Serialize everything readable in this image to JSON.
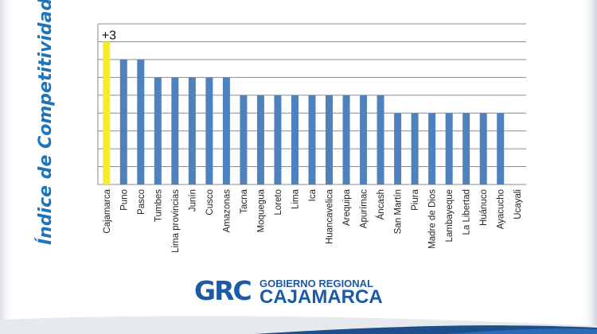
{
  "chart_data": {
    "type": "bar",
    "title": "",
    "xlabel": "",
    "ylabel": "Índice de Competitividad",
    "categories": [
      "Cajamarca",
      "Puno",
      "Pasco",
      "Tumbes",
      "Lima provincias",
      "Junín",
      "Cusco",
      "Amazonas",
      "Tacna",
      "Moquegua",
      "Loreto",
      "Lima",
      "Ica",
      "Huancavelica",
      "Arequipa",
      "Apurímac",
      "Áncash",
      "San Martín",
      "Piura",
      "Madre de Dios",
      "Lambayeque",
      "La Libertad",
      "Huánuco",
      "Ayacucho",
      "Ucayali"
    ],
    "values": [
      8,
      7,
      7,
      6,
      6,
      6,
      6,
      6,
      5,
      5,
      5,
      5,
      5,
      5,
      5,
      5,
      5,
      4,
      4,
      4,
      4,
      4,
      4,
      4,
      0
    ],
    "ylim": [
      0,
      9
    ],
    "grid": true,
    "highlight_index": 0,
    "annotation": "+3",
    "colors": {
      "bar": "#4f81bd",
      "highlight": "#f7ec2a",
      "grid": "#8c8c8c"
    }
  },
  "logo": {
    "mark": "GRC",
    "line1": "GOBIERNO REGIONAL",
    "line2": "CAJAMARCA"
  }
}
